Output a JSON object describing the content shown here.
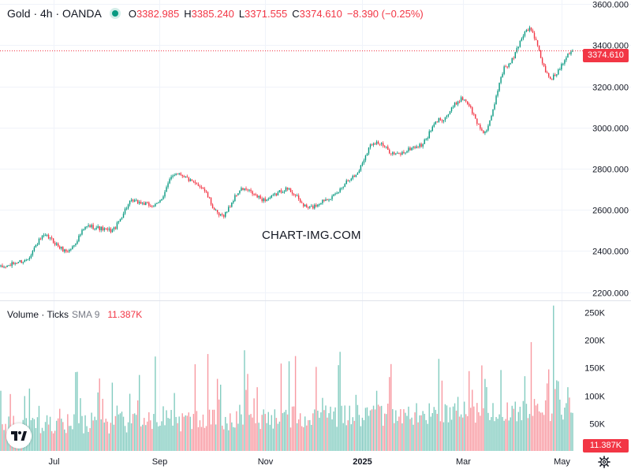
{
  "legend": {
    "symbol": "Gold · 4h · OANDA",
    "open_key": "O",
    "open": "3382.985",
    "high_key": "H",
    "high": "3385.240",
    "low_key": "L",
    "low": "3371.555",
    "close_key": "C",
    "close": "3374.610",
    "change": "−8.390 (−0.25%)"
  },
  "volume_legend": {
    "title": "Volume · Ticks",
    "sma_label": "SMA 9",
    "sma_value": "11.387K"
  },
  "watermark": "CHART-IMG.COM",
  "last_price_label": "3374.610",
  "last_volume_label": "11.387K",
  "colors": {
    "up": "#089981",
    "down": "#f23645",
    "grid": "#f0f3fa",
    "text": "#131722"
  },
  "icons": {
    "logo": "tradingview-logo-icon",
    "settings": "gear-icon"
  },
  "chart_data": [
    {
      "type": "candlestick",
      "x_ticks": [
        "Jul",
        "Sep",
        "Nov",
        "2025",
        "Mar",
        "May"
      ],
      "y_ticks": [
        "2200.000",
        "2400.000",
        "2600.000",
        "2800.000",
        "3000.000",
        "3200.000",
        "3400.000",
        "3600.000"
      ],
      "ylim": [
        2160,
        3620
      ],
      "last_price": 3374.61,
      "series": [
        {
          "x": "Jun",
          "price": 2320
        },
        {
          "x": "Jul",
          "price": 2350
        },
        {
          "x": "Jul",
          "price": 2470
        },
        {
          "x": "Aug",
          "price": 2400
        },
        {
          "x": "Aug",
          "price": 2520
        },
        {
          "x": "Sep",
          "price": 2500
        },
        {
          "x": "Sep",
          "price": 2640
        },
        {
          "x": "Oct",
          "price": 2620
        },
        {
          "x": "Oct",
          "price": 2780
        },
        {
          "x": "Nov",
          "price": 2720
        },
        {
          "x": "Nov",
          "price": 2570
        },
        {
          "x": "Nov",
          "price": 2700
        },
        {
          "x": "Dec",
          "price": 2650
        },
        {
          "x": "Dec",
          "price": 2700
        },
        {
          "x": "Dec",
          "price": 2610
        },
        {
          "x": "2025",
          "price": 2660
        },
        {
          "x": "Jan",
          "price": 2760
        },
        {
          "x": "Feb",
          "price": 2930
        },
        {
          "x": "Feb",
          "price": 2870
        },
        {
          "x": "Mar",
          "price": 2910
        },
        {
          "x": "Mar",
          "price": 3040
        },
        {
          "x": "Apr",
          "price": 3140
        },
        {
          "x": "Apr",
          "price": 2980
        },
        {
          "x": "Apr",
          "price": 3300
        },
        {
          "x": "Apr",
          "price": 3480
        },
        {
          "x": "May",
          "price": 3240
        },
        {
          "x": "May",
          "price": 3375
        }
      ]
    },
    {
      "type": "bar",
      "title": "Volume · Ticks",
      "y_ticks": [
        "50K",
        "100K",
        "150K",
        "200K",
        "250K"
      ],
      "ylim": [
        0,
        270000
      ],
      "last_value": 11387
    }
  ]
}
